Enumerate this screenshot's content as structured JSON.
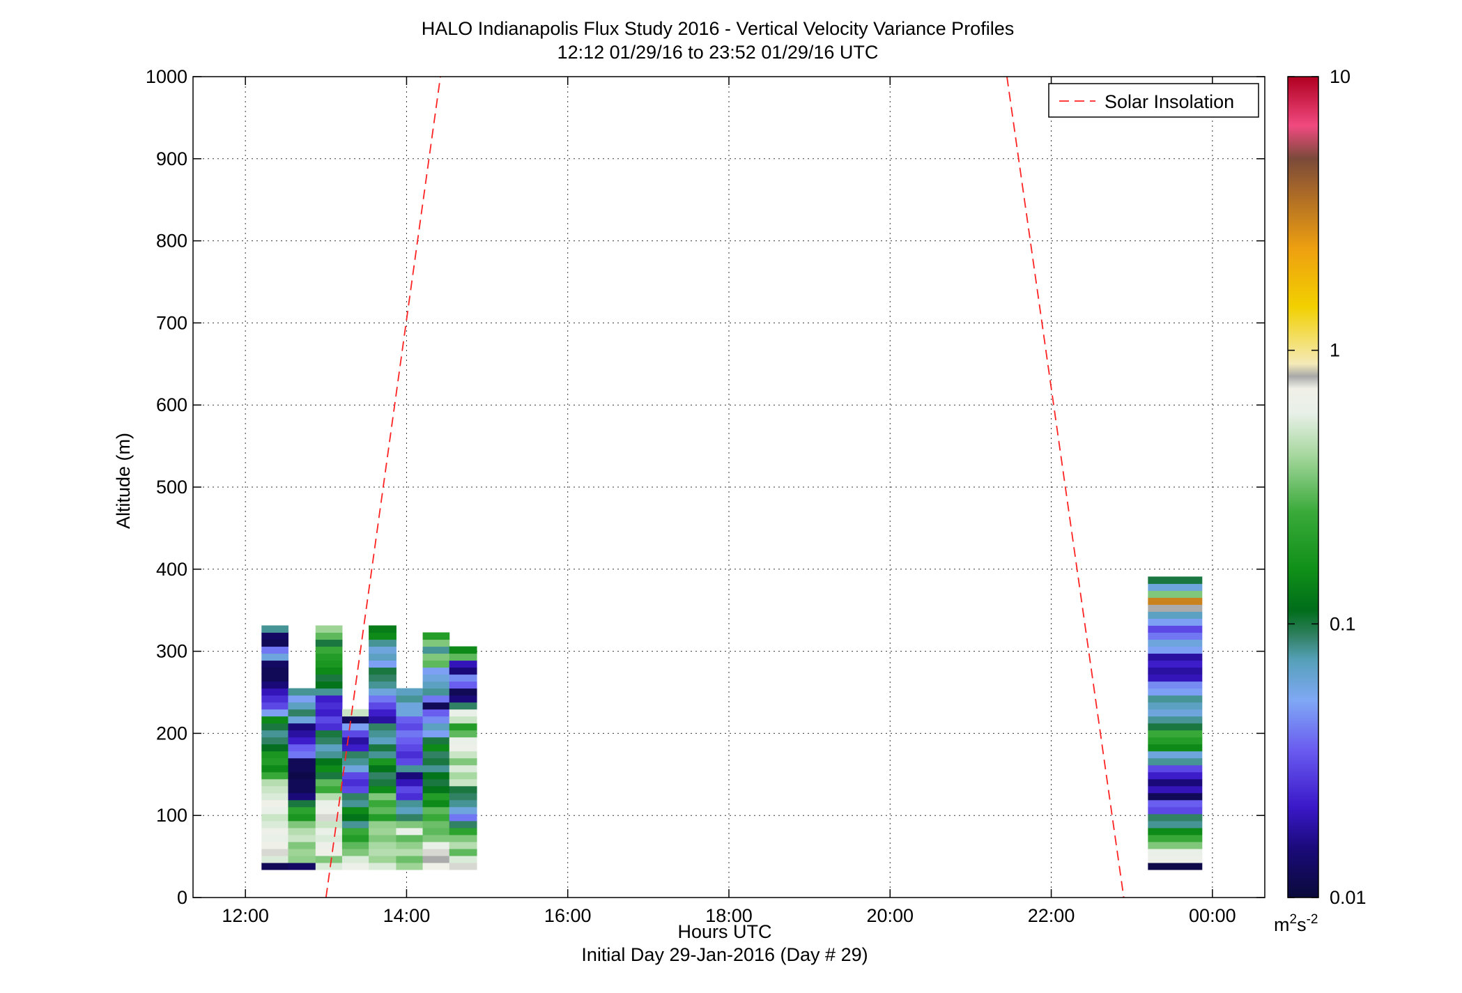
{
  "chart_data": {
    "type": "heatmap",
    "title": "HALO Indianapolis Flux Study 2016 - Vertical Velocity Variance Profiles",
    "subtitle": "12:12 01/29/16 to 23:52 01/29/16  UTC",
    "xlabel": "Hours UTC",
    "xlabel2": "Initial Day 29-Jan-2016 (Day # 29)",
    "ylabel": "Altitude (m)",
    "xlim": [
      11.35,
      24.65
    ],
    "ylim": [
      0,
      1000
    ],
    "x_ticks": [
      12,
      14,
      16,
      18,
      20,
      22,
      24
    ],
    "x_tick_labels": [
      "12:00",
      "14:00",
      "16:00",
      "18:00",
      "20:00",
      "22:00",
      "00:00"
    ],
    "y_ticks": [
      0,
      100,
      200,
      300,
      400,
      500,
      600,
      700,
      800,
      900,
      1000
    ],
    "y_tick_labels": [
      "0",
      "100",
      "200",
      "300",
      "400",
      "500",
      "600",
      "700",
      "800",
      "900",
      "1000"
    ],
    "grid": true,
    "legend": {
      "placement": "top-right",
      "entries": [
        {
          "name": "Solar Insolation",
          "style": "red-dashed",
          "color": "#ff2222"
        }
      ]
    },
    "colorbar": {
      "scale": "log",
      "range": [
        0.01,
        10
      ],
      "tick_values": [
        0.01,
        0.1,
        1,
        10
      ],
      "tick_labels": [
        "0.01",
        "0.1",
        "1",
        "10"
      ],
      "unit_base": "m",
      "unit_exp1": "2",
      "unit_mid": "s",
      "unit_exp2": "-2"
    },
    "solar_insolation": [
      {
        "x": [
          13.0,
          14.42
        ],
        "y": [
          0,
          1000
        ]
      },
      {
        "x": [
          21.45,
          22.9
        ],
        "y": [
          1000,
          0
        ]
      }
    ],
    "bin_height_m": 8.5,
    "first_bin_m": 34,
    "profiles": [
      {
        "t0": 12.2,
        "t1": 12.53,
        "values": [
          0.012,
          0.55,
          0.75,
          0.7,
          0.6,
          0.65,
          0.55,
          0.5,
          0.6,
          0.7,
          0.55,
          0.5,
          0.45,
          0.25,
          0.15,
          0.2,
          0.18,
          0.11,
          0.09,
          0.08,
          0.1,
          0.15,
          0.05,
          0.03,
          0.025,
          0.02,
          0.015,
          0.012,
          0.012,
          0.013,
          0.06,
          0.04,
          0.012,
          0.013,
          0.08
        ]
      },
      {
        "t0": 12.53,
        "t1": 12.87,
        "values": [
          0.013,
          0.38,
          0.4,
          0.35,
          0.5,
          0.45,
          0.35,
          0.18,
          0.22,
          0.1,
          0.015,
          0.012,
          0.012,
          0.011,
          0.012,
          0.012,
          0.04,
          0.035,
          0.022,
          0.018,
          0.015,
          0.06,
          0.09,
          0.07,
          0.05,
          0.08
        ]
      },
      {
        "t0": 12.87,
        "t1": 13.2,
        "values": [
          0.55,
          0.35,
          0.7,
          0.65,
          0.55,
          0.6,
          0.5,
          0.75,
          0.65,
          0.6,
          0.45,
          0.25,
          0.3,
          0.1,
          0.15,
          0.12,
          0.08,
          0.07,
          0.09,
          0.1,
          0.025,
          0.03,
          0.022,
          0.025,
          0.022,
          0.08,
          0.12,
          0.1,
          0.15,
          0.18,
          0.2,
          0.25,
          0.1,
          0.3,
          0.4
        ]
      },
      {
        "t0": 13.2,
        "t1": 13.53,
        "values": [
          0.65,
          0.55,
          0.35,
          0.3,
          0.2,
          0.25,
          0.08,
          0.12,
          0.15,
          0.08,
          0.09,
          0.03,
          0.025,
          0.03,
          0.06,
          0.08,
          0.09,
          0.022,
          0.018,
          0.03,
          0.05,
          0.012,
          0.5
        ]
      },
      {
        "t0": 13.53,
        "t1": 13.87,
        "values": [
          0.55,
          0.4,
          0.45,
          0.42,
          0.35,
          0.4,
          0.38,
          0.2,
          0.3,
          0.25,
          0.35,
          0.15,
          0.1,
          0.09,
          0.12,
          0.18,
          0.08,
          0.1,
          0.07,
          0.08,
          0.09,
          0.018,
          0.022,
          0.03,
          0.04,
          0.06,
          0.08,
          0.09,
          0.1,
          0.05,
          0.07,
          0.06,
          0.08,
          0.15,
          0.13
        ]
      },
      {
        "t0": 13.87,
        "t1": 14.2,
        "values": [
          0.4,
          0.32,
          0.45,
          0.38,
          0.3,
          0.6,
          0.35,
          0.09,
          0.07,
          0.08,
          0.025,
          0.03,
          0.02,
          0.015,
          0.08,
          0.03,
          0.025,
          0.03,
          0.035,
          0.04,
          0.03,
          0.035,
          0.06,
          0.06,
          0.08,
          0.07
        ]
      },
      {
        "t0": 14.2,
        "t1": 14.53,
        "values": [
          0.7,
          0.8,
          0.75,
          0.6,
          0.35,
          0.3,
          0.32,
          0.25,
          0.3,
          0.15,
          0.2,
          0.12,
          0.1,
          0.12,
          0.08,
          0.1,
          0.09,
          0.15,
          0.1,
          0.05,
          0.07,
          0.045,
          0.035,
          0.012,
          0.04,
          0.08,
          0.07,
          0.06,
          0.05,
          0.3,
          0.35,
          0.08,
          0.35,
          0.2
        ]
      },
      {
        "t0": 14.53,
        "t1": 14.87,
        "values": [
          0.75,
          0.55,
          0.3,
          0.45,
          0.35,
          0.22,
          0.09,
          0.04,
          0.06,
          0.08,
          0.09,
          0.1,
          0.5,
          0.42,
          0.55,
          0.35,
          0.5,
          0.65,
          0.6,
          0.3,
          0.2,
          0.5,
          0.6,
          0.09,
          0.015,
          0.012,
          0.035,
          0.045,
          0.015,
          0.02,
          0.3,
          0.15
        ]
      },
      {
        "t0": 23.2,
        "t1": 23.87,
        "values": [
          0.011,
          0.65,
          0.6,
          0.35,
          0.25,
          0.15,
          0.08,
          0.09,
          0.03,
          0.035,
          0.012,
          0.02,
          0.015,
          0.022,
          0.03,
          0.08,
          0.06,
          0.15,
          0.2,
          0.25,
          0.1,
          0.08,
          0.06,
          0.07,
          0.08,
          0.05,
          0.045,
          0.02,
          0.018,
          0.022,
          0.018,
          0.05,
          0.06,
          0.04,
          0.03,
          0.05,
          0.07,
          0.8,
          3.0,
          0.35,
          0.06,
          0.1
        ]
      }
    ]
  }
}
